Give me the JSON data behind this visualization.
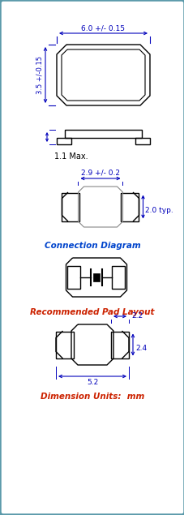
{
  "bg_color": "#e8eeee",
  "panel_color": "#ffffff",
  "border_color": "#5b9aaa",
  "line_color": "#000000",
  "dim_color": "#0000bb",
  "conn_label_color": "#0044cc",
  "pad_label_color": "#cc2200",
  "dim_units_color": "#cc2200",
  "texts": {
    "dim1": "6.0 +/- 0.15",
    "dim2": "3.5 +/-0.15",
    "dim3": "1.1 Max.",
    "dim4": "2.9 +/- 0.2",
    "dim5": "2.0 typ.",
    "conn": "Connection Diagram",
    "pad": "Recommended Pad Layout",
    "pad_w": "2.2",
    "pad_h": "2.4",
    "pad_l": "5.2",
    "units": "Dimension Units:  mm"
  }
}
